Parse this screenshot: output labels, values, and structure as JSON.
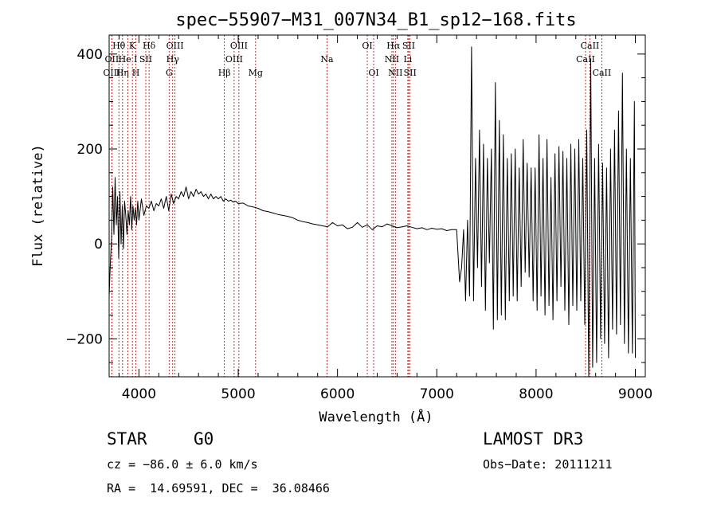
{
  "chart_data": {
    "type": "line",
    "title": "spec−55907−M31_007N34_B1_sp12−168.fits",
    "xlabel": "Wavelength (Å)",
    "ylabel": "Flux (relative)",
    "xlim": [
      3700,
      9100
    ],
    "ylim": [
      -280,
      440
    ],
    "xticks": [
      4000,
      5000,
      6000,
      7000,
      8000,
      9000
    ],
    "xtick_labels": [
      "4000",
      "5000",
      "6000",
      "7000",
      "8000",
      "9000"
    ],
    "yticks": [
      -200,
      0,
      200,
      400
    ],
    "ytick_labels": [
      "−200",
      "0",
      "200",
      "400"
    ],
    "colors": {
      "trace": "#000000",
      "line_marker": "#b00000",
      "axes": "#000000"
    },
    "spectral_lines": [
      {
        "label": "Hθ",
        "wavelength": 3798,
        "row": 1
      },
      {
        "label": "OII",
        "wavelength": 3727,
        "row": 2
      },
      {
        "label": "OIII",
        "wavelength": 3727,
        "row": 3
      },
      {
        "label": "He I",
        "wavelength": 3889,
        "row": 2
      },
      {
        "label": "K",
        "wavelength": 3934,
        "row": 1
      },
      {
        "label": "Hη",
        "wavelength": 3835,
        "row": 3
      },
      {
        "label": "SII",
        "wavelength": 4069,
        "row": 2
      },
      {
        "label": "H",
        "wavelength": 3969,
        "row": 3
      },
      {
        "label": "Hδ",
        "wavelength": 4102,
        "row": 1
      },
      {
        "label": "OIII",
        "wavelength": 4363,
        "row": 1
      },
      {
        "label": "Hγ",
        "wavelength": 4340,
        "row": 2
      },
      {
        "label": "G",
        "wavelength": 4304,
        "row": 3
      },
      {
        "label": "OIII",
        "wavelength": 5007,
        "row": 1
      },
      {
        "label": "OIII",
        "wavelength": 4959,
        "row": 2
      },
      {
        "label": "Hβ",
        "wavelength": 4861,
        "row": 3
      },
      {
        "label": "Mg",
        "wavelength": 5175,
        "row": 3
      },
      {
        "label": "Na",
        "wavelength": 5894,
        "row": 2
      },
      {
        "label": "OI",
        "wavelength": 6300,
        "row": 1
      },
      {
        "label": "OI",
        "wavelength": 6364,
        "row": 3
      },
      {
        "label": "Hα",
        "wavelength": 6563,
        "row": 1
      },
      {
        "label": "SII",
        "wavelength": 6717,
        "row": 1
      },
      {
        "label": "NII",
        "wavelength": 6548,
        "row": 2
      },
      {
        "label": "Li",
        "wavelength": 6708,
        "row": 2
      },
      {
        "label": "NII",
        "wavelength": 6583,
        "row": 3
      },
      {
        "label": "SII",
        "wavelength": 6731,
        "row": 3
      },
      {
        "label": "CaII",
        "wavelength": 8542,
        "row": 1
      },
      {
        "label": "CaII",
        "wavelength": 8498,
        "row": 2
      },
      {
        "label": "CaII",
        "wavelength": 8662,
        "row": 3
      }
    ],
    "series": [
      {
        "name": "flux",
        "x": [
          3700,
          3712,
          3724,
          3736,
          3748,
          3760,
          3772,
          3784,
          3796,
          3808,
          3820,
          3832,
          3844,
          3856,
          3868,
          3880,
          3892,
          3904,
          3916,
          3928,
          3940,
          3952,
          3964,
          3976,
          3988,
          4000,
          4025,
          4050,
          4075,
          4100,
          4125,
          4150,
          4175,
          4200,
          4225,
          4250,
          4275,
          4300,
          4325,
          4350,
          4375,
          4400,
          4425,
          4450,
          4475,
          4500,
          4525,
          4550,
          4575,
          4600,
          4625,
          4650,
          4675,
          4700,
          4725,
          4750,
          4775,
          4800,
          4825,
          4850,
          4875,
          4900,
          4925,
          4950,
          4975,
          5000,
          5050,
          5100,
          5150,
          5200,
          5250,
          5300,
          5350,
          5400,
          5450,
          5500,
          5550,
          5600,
          5650,
          5700,
          5750,
          5800,
          5850,
          5900,
          5950,
          6000,
          6050,
          6100,
          6150,
          6200,
          6250,
          6300,
          6350,
          6400,
          6450,
          6500,
          6550,
          6600,
          6650,
          6700,
          6750,
          6800,
          6850,
          6900,
          6950,
          7000,
          7050,
          7100,
          7150,
          7200,
          7230,
          7250,
          7270,
          7290,
          7310,
          7330,
          7350,
          7370,
          7390,
          7410,
          7430,
          7450,
          7470,
          7490,
          7510,
          7530,
          7550,
          7570,
          7590,
          7610,
          7630,
          7650,
          7670,
          7690,
          7710,
          7730,
          7750,
          7770,
          7790,
          7810,
          7830,
          7850,
          7870,
          7890,
          7910,
          7930,
          7950,
          7970,
          7990,
          8010,
          8030,
          8050,
          8070,
          8090,
          8110,
          8130,
          8150,
          8170,
          8190,
          8210,
          8230,
          8250,
          8270,
          8290,
          8310,
          8330,
          8350,
          8370,
          8390,
          8410,
          8430,
          8450,
          8470,
          8490,
          8510,
          8530,
          8550,
          8570,
          8590,
          8610,
          8630,
          8650,
          8670,
          8690,
          8710,
          8730,
          8750,
          8770,
          8790,
          8810,
          8830,
          8850,
          8870,
          8890,
          8910,
          8930,
          8950,
          8970,
          8990,
          9000
        ],
        "y": [
          -110,
          -40,
          10,
          120,
          20,
          140,
          40,
          100,
          -30,
          110,
          0,
          80,
          -10,
          90,
          60,
          20,
          70,
          40,
          100,
          30,
          80,
          50,
          75,
          40,
          90,
          50,
          95,
          60,
          80,
          75,
          90,
          70,
          85,
          80,
          95,
          75,
          100,
          70,
          105,
          85,
          100,
          95,
          110,
          100,
          120,
          95,
          110,
          100,
          115,
          105,
          110,
          100,
          105,
          95,
          105,
          95,
          100,
          95,
          100,
          90,
          95,
          90,
          92,
          88,
          90,
          85,
          86,
          80,
          78,
          75,
          70,
          68,
          65,
          62,
          60,
          58,
          55,
          50,
          47,
          45,
          42,
          40,
          38,
          36,
          45,
          38,
          40,
          32,
          35,
          45,
          35,
          40,
          30,
          38,
          36,
          42,
          38,
          34,
          36,
          38,
          35,
          32,
          34,
          30,
          33,
          31,
          32,
          28,
          30,
          30,
          -80,
          -50,
          30,
          -120,
          50,
          -110,
          415,
          -120,
          180,
          -50,
          240,
          -90,
          210,
          -140,
          180,
          -40,
          200,
          -180,
          340,
          -160,
          260,
          -150,
          230,
          -160,
          180,
          -120,
          190,
          -110,
          200,
          -120,
          160,
          -90,
          220,
          -60,
          170,
          -70,
          160,
          -120,
          160,
          -140,
          230,
          -110,
          180,
          -150,
          220,
          -130,
          140,
          -160,
          190,
          -120,
          205,
          -90,
          195,
          -140,
          180,
          -170,
          210,
          -130,
          200,
          -140,
          220,
          -120,
          180,
          -170,
          240,
          -280,
          390,
          -260,
          180,
          -250,
          210,
          -200,
          170,
          -210,
          160,
          -240,
          200,
          -180,
          240,
          -190,
          280,
          -170,
          360,
          -210,
          200,
          -230,
          180,
          -230,
          300,
          -240
        ]
      }
    ]
  },
  "info": {
    "object_class": "STAR",
    "subclass": "G0",
    "cz": "cz = −86.0 ± 6.0 km/s",
    "radec": "RA =  14.69591, DEC =  36.08466",
    "survey": "LAMOST DR3",
    "obs_date": "Obs−Date: 20111211"
  }
}
